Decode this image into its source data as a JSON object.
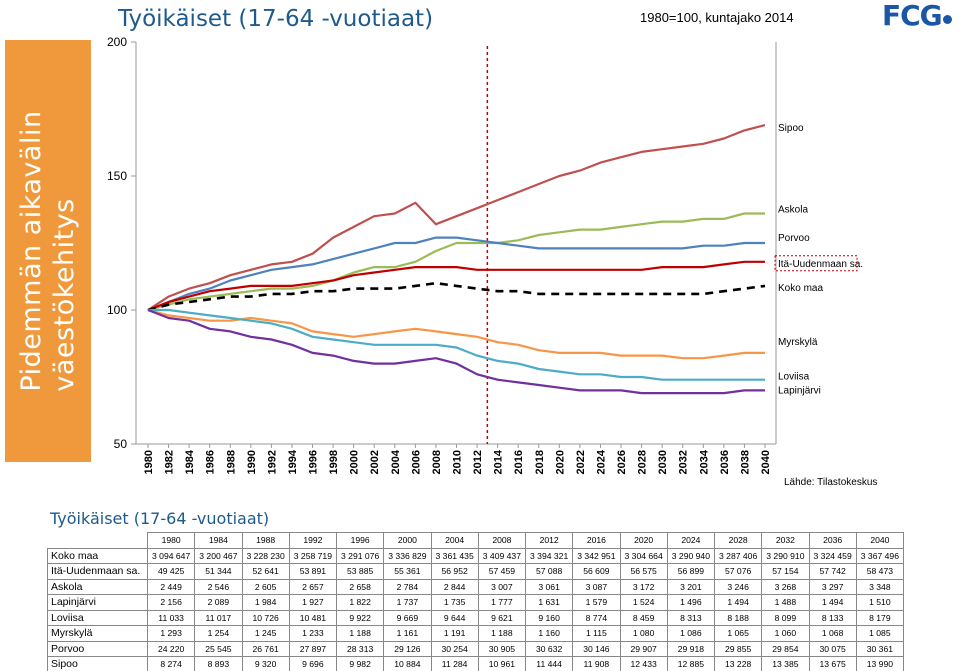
{
  "header": {
    "title": "Työikäiset (17-64 -vuotiaat)",
    "base_note": "1980=100, kuntajako 2014",
    "logo": "FCG"
  },
  "side_title": {
    "line1": "Pidemmän aikavälin",
    "line2": "väestökehitys"
  },
  "source": "Lähde: Tilastokeskus",
  "colors": {
    "sipoo": "#c0504d",
    "askola": "#9bbb59",
    "porvoo": "#4f81bd",
    "ita_uusimaa": "#c00000",
    "koko_maa": "#000000",
    "myrskyla": "#f79646",
    "loviisa": "#4bacc6",
    "lapinjarvi": "#7030a0",
    "divider": "#c00000",
    "side_band": "#f0993c"
  },
  "chart_data": {
    "type": "line",
    "ylim": [
      50,
      200
    ],
    "yticks": [
      "50",
      "100",
      "150",
      "200"
    ],
    "x": [
      "1980",
      "1982",
      "1984",
      "1986",
      "1988",
      "1990",
      "1992",
      "1994",
      "1996",
      "1998",
      "2000",
      "2002",
      "2004",
      "2006",
      "2008",
      "2010",
      "2012",
      "2014",
      "2016",
      "2018",
      "2020",
      "2022",
      "2024",
      "2026",
      "2028",
      "2030",
      "2032",
      "2034",
      "2036",
      "2038",
      "2040"
    ],
    "projection_start": "2013",
    "series": [
      {
        "name": "Sipoo",
        "key": "sipoo",
        "dashed": false,
        "values": [
          100,
          105,
          108,
          110,
          113,
          115,
          117,
          118,
          121,
          127,
          131,
          135,
          136,
          140,
          132,
          135,
          138,
          141,
          144,
          147,
          150,
          152,
          155,
          157,
          159,
          160,
          161,
          162,
          164,
          167,
          169
        ]
      },
      {
        "name": "Askola",
        "key": "askola",
        "dashed": false,
        "values": [
          100,
          102,
          104,
          105,
          106,
          107,
          108,
          108,
          109,
          111,
          114,
          116,
          116,
          118,
          122,
          125,
          125,
          125,
          126,
          128,
          129,
          130,
          130,
          131,
          132,
          133,
          133,
          134,
          134,
          136,
          136
        ]
      },
      {
        "name": "Porvoo",
        "key": "porvoo",
        "dashed": false,
        "values": [
          100,
          103,
          106,
          108,
          111,
          113,
          115,
          116,
          117,
          119,
          121,
          123,
          125,
          125,
          127,
          127,
          126,
          125,
          124,
          123,
          123,
          123,
          123,
          123,
          123,
          123,
          123,
          124,
          124,
          125,
          125
        ]
      },
      {
        "name": "Itä-Uudenmaan sa.",
        "key": "ita_uusimaa",
        "dashed": false,
        "values": [
          100,
          103,
          105,
          107,
          108,
          109,
          109,
          109,
          110,
          111,
          113,
          114,
          115,
          116,
          116,
          116,
          115,
          115,
          115,
          115,
          115,
          115,
          115,
          115,
          115,
          116,
          116,
          116,
          117,
          118,
          118
        ]
      },
      {
        "name": "Koko maa",
        "key": "koko_maa",
        "dashed": true,
        "values": [
          100,
          102,
          103,
          104,
          105,
          105,
          106,
          106,
          107,
          107,
          108,
          108,
          108,
          109,
          110,
          109,
          108,
          107,
          107,
          106,
          106,
          106,
          106,
          106,
          106,
          106,
          106,
          106,
          107,
          108,
          109
        ]
      },
      {
        "name": "Myrskylä",
        "key": "myrskyla",
        "dashed": false,
        "values": [
          100,
          98,
          97,
          96,
          96,
          97,
          96,
          95,
          92,
          91,
          90,
          91,
          92,
          93,
          92,
          91,
          90,
          88,
          87,
          85,
          84,
          84,
          84,
          83,
          83,
          83,
          82,
          82,
          83,
          84,
          84
        ]
      },
      {
        "name": "Loviisa",
        "key": "loviisa",
        "dashed": false,
        "values": [
          100,
          100,
          99,
          98,
          97,
          96,
          95,
          93,
          90,
          89,
          88,
          87,
          87,
          87,
          87,
          86,
          83,
          81,
          80,
          78,
          77,
          76,
          76,
          75,
          75,
          74,
          74,
          74,
          74,
          74,
          74
        ]
      },
      {
        "name": "Lapinjärvi",
        "key": "lapinjarvi",
        "dashed": false,
        "values": [
          100,
          97,
          96,
          93,
          92,
          90,
          89,
          87,
          84,
          83,
          81,
          80,
          80,
          81,
          82,
          80,
          76,
          74,
          73,
          72,
          71,
          70,
          70,
          70,
          69,
          69,
          69,
          69,
          69,
          70,
          70
        ]
      }
    ]
  },
  "table": {
    "title": "Työikäiset (17-64 -vuotiaat)",
    "years": [
      "1980",
      "1984",
      "1988",
      "1992",
      "1996",
      "2000",
      "2004",
      "2008",
      "2012",
      "2016",
      "2020",
      "2024",
      "2028",
      "2032",
      "2036",
      "2040"
    ],
    "rows": [
      {
        "name": "Koko maa",
        "values": [
          "3 094 647",
          "3 200 467",
          "3 228 230",
          "3 258 719",
          "3 291 076",
          "3 336 829",
          "3 361 435",
          "3 409 437",
          "3 394 321",
          "3 342 951",
          "3 304 664",
          "3 290 940",
          "3 287 406",
          "3 290 910",
          "3 324 459",
          "3 367 496"
        ]
      },
      {
        "name": "Itä-Uudenmaan sa.",
        "values": [
          "49 425",
          "51 344",
          "52 641",
          "53 891",
          "53 885",
          "55 361",
          "56 952",
          "57 459",
          "57 088",
          "56 609",
          "56 575",
          "56 899",
          "57 076",
          "57 154",
          "57 742",
          "58 473"
        ]
      },
      {
        "name": "Askola",
        "values": [
          "2 449",
          "2 546",
          "2 605",
          "2 657",
          "2 658",
          "2 784",
          "2 844",
          "3 007",
          "3 061",
          "3 087",
          "3 172",
          "3 201",
          "3 246",
          "3 268",
          "3 297",
          "3 348"
        ]
      },
      {
        "name": "Lapinjärvi",
        "values": [
          "2 156",
          "2 089",
          "1 984",
          "1 927",
          "1 822",
          "1 737",
          "1 735",
          "1 777",
          "1 631",
          "1 579",
          "1 524",
          "1 496",
          "1 494",
          "1 488",
          "1 494",
          "1 510"
        ]
      },
      {
        "name": "Loviisa",
        "values": [
          "11 033",
          "11 017",
          "10 726",
          "10 481",
          "9 922",
          "9 669",
          "9 644",
          "9 621",
          "9 160",
          "8 774",
          "8 459",
          "8 313",
          "8 188",
          "8 099",
          "8 133",
          "8 179"
        ]
      },
      {
        "name": "Myrskylä",
        "values": [
          "1 293",
          "1 254",
          "1 245",
          "1 233",
          "1 188",
          "1 161",
          "1 191",
          "1 188",
          "1 160",
          "1 115",
          "1 080",
          "1 086",
          "1 065",
          "1 060",
          "1 068",
          "1 085"
        ]
      },
      {
        "name": "Porvoo",
        "values": [
          "24 220",
          "25 545",
          "26 761",
          "27 897",
          "28 313",
          "29 126",
          "30 254",
          "30 905",
          "30 632",
          "30 146",
          "29 907",
          "29 918",
          "29 855",
          "29 854",
          "30 075",
          "30 361"
        ]
      },
      {
        "name": "Sipoo",
        "values": [
          "8 274",
          "8 893",
          "9 320",
          "9 696",
          "9 982",
          "10 884",
          "11 284",
          "10 961",
          "11 444",
          "11 908",
          "12 433",
          "12 885",
          "13 228",
          "13 385",
          "13 675",
          "13 990"
        ]
      }
    ]
  }
}
